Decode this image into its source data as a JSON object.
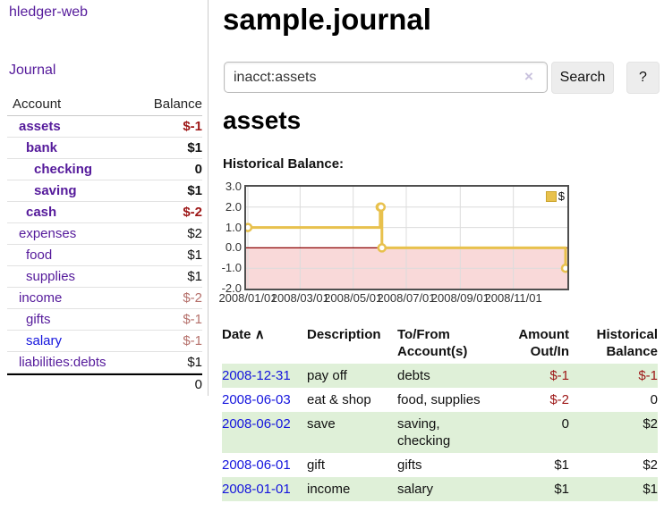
{
  "app_title": "hledger-web",
  "sidebar": {
    "journal_link": "Journal",
    "accounts": {
      "header": {
        "account": "Account",
        "balance": "Balance"
      },
      "rows": [
        {
          "account": "assets",
          "balance": "$-1"
        },
        {
          "account": "bank",
          "balance": "$1"
        },
        {
          "account": "checking",
          "balance": "0"
        },
        {
          "account": "saving",
          "balance": "$1"
        },
        {
          "account": "cash",
          "balance": "$-2"
        },
        {
          "account": "expenses",
          "balance": "$2"
        },
        {
          "account": "food",
          "balance": "$1"
        },
        {
          "account": "supplies",
          "balance": "$1"
        },
        {
          "account": "income",
          "balance": "$-2"
        },
        {
          "account": "gifts",
          "balance": "$-1"
        },
        {
          "account": "salary",
          "balance": "$-1"
        },
        {
          "account": "liabilities:debts",
          "balance": "$1"
        }
      ],
      "total": "0"
    }
  },
  "main": {
    "title": "sample.journal",
    "search": {
      "value": "inacct:assets",
      "clear_icon": "×",
      "search_button": "Search",
      "help_button": "?"
    },
    "account_heading": "assets",
    "section_label": "Historical Balance:"
  },
  "chart_data": {
    "type": "line",
    "title": "Historical Balance",
    "line_style": "steps",
    "x": [
      "2008-01-01",
      "2008-06-01",
      "2008-06-02",
      "2008-06-03",
      "2008-12-31"
    ],
    "series": [
      {
        "name": "$",
        "values": [
          1,
          2,
          2,
          0,
          -1
        ],
        "color": "#e8c14d",
        "markers": true
      }
    ],
    "x_ticks": [
      "2008/01/01",
      "2008/03/01",
      "2008/05/01",
      "2008/07/01",
      "2008/09/01",
      "2008/11/01"
    ],
    "y_ticks": [
      3.0,
      2.0,
      1.0,
      0.0,
      -1.0,
      -2.0
    ],
    "ylim": [
      -2,
      3
    ],
    "x_range": [
      "2008-01-01",
      "2008-12-31"
    ],
    "grid": true,
    "legend": {
      "label": "$",
      "position": "top-right"
    },
    "negative_region_color": "#f9d9d9",
    "zero_line_color": "#8b0000",
    "xlabel": "",
    "ylabel": ""
  },
  "register": {
    "sort_icon": "∧",
    "headers": {
      "date": "Date",
      "description": "Description",
      "accounts": "To/From Account(s)",
      "amount": "Amount Out/In",
      "balance": "Historical Balance"
    },
    "rows": [
      {
        "date": "2008-12-31",
        "description": "pay off",
        "accounts": "debts",
        "amount": "$-1",
        "balance": "$-1"
      },
      {
        "date": "2008-06-03",
        "description": "eat & shop",
        "accounts": "food, supplies",
        "amount": "$-2",
        "balance": "0"
      },
      {
        "date": "2008-06-02",
        "description": "save",
        "accounts": "saving, checking",
        "amount": "0",
        "balance": "$2"
      },
      {
        "date": "2008-06-01",
        "description": "gift",
        "accounts": "gifts",
        "amount": "$1",
        "balance": "$2"
      },
      {
        "date": "2008-01-01",
        "description": "income",
        "accounts": "salary",
        "amount": "$1",
        "balance": "$1"
      }
    ]
  }
}
